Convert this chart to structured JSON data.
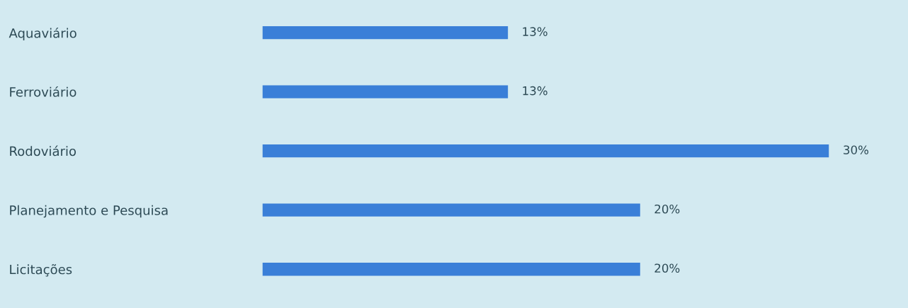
{
  "chart_data": {
    "type": "bar",
    "orientation": "horizontal",
    "categories": [
      "Aquaviário",
      "Ferroviário",
      "Rodoviário",
      "Planejamento e Pesquisa",
      "Licitações"
    ],
    "values": [
      13,
      13,
      30,
      20,
      20
    ],
    "value_labels": [
      "13%",
      "13%",
      "30%",
      "20%",
      "20%"
    ],
    "color": "#3a7fd8",
    "grid": false,
    "legend": false
  }
}
